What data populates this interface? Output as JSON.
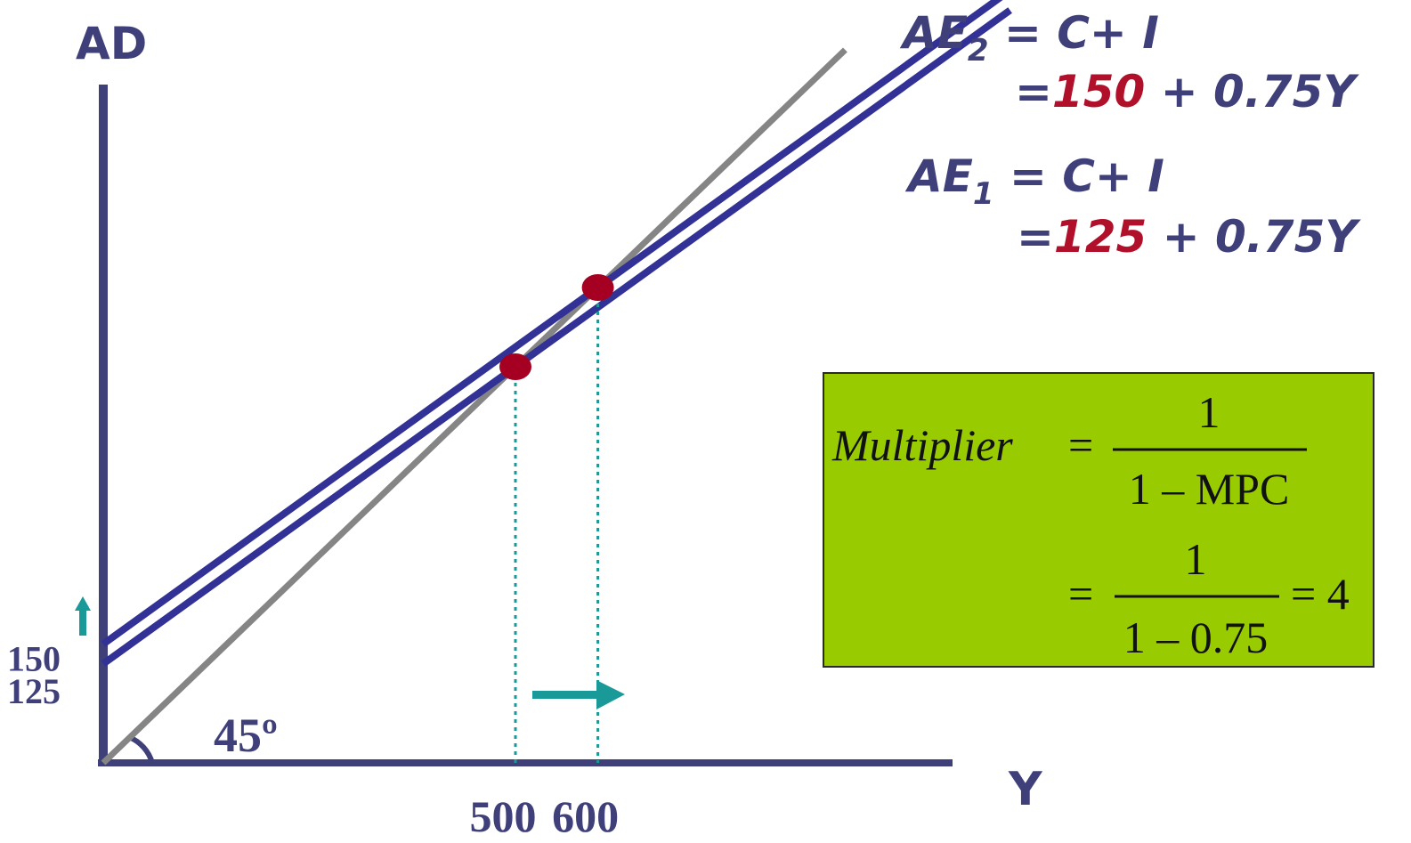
{
  "chart_data": {
    "type": "line",
    "axes": {
      "y_label": "AD",
      "x_label": "Y",
      "xlim": [
        0,
        1100
      ],
      "ylim": [
        0,
        1050
      ],
      "y_ticks": [
        {
          "value": 125,
          "label": "125"
        },
        {
          "value": 150,
          "label": "150"
        }
      ],
      "x_ticks": [
        {
          "value": 500,
          "label": "500"
        },
        {
          "value": 600,
          "label": "600"
        }
      ]
    },
    "angle_label": "45º",
    "series": [
      {
        "name": "45° line",
        "intercept": 0,
        "slope": 1,
        "x_end": 900,
        "color": "#858585"
      },
      {
        "name": "AE1",
        "intercept": 125,
        "slope": 0.75,
        "x_end": 1100,
        "color": "#323296"
      },
      {
        "name": "AE2",
        "intercept": 150,
        "slope": 0.75,
        "x_end": 1100,
        "color": "#323296"
      }
    ],
    "equilibrium_points": [
      {
        "x": 500,
        "y": 500
      },
      {
        "x": 600,
        "y": 600
      }
    ],
    "shift_arrows": [
      "up-y",
      "right-x"
    ],
    "annotations": {
      "ae2_line1": {
        "base": "AE",
        "sub": "2",
        "rest": " = C+ I"
      },
      "ae2_line2": {
        "eq": "=",
        "value": "150",
        "rest": " + 0.75Y"
      },
      "ae1_line1": {
        "base": "AE",
        "sub": "1",
        "rest": " = C+ I"
      },
      "ae1_line2": {
        "eq": "=",
        "value": "125",
        "rest": " + 0.75Y"
      }
    },
    "multiplier_box": {
      "label": "Multiplier",
      "eq": "=",
      "num1": "1",
      "den1": "1 – MPC",
      "num2": "1",
      "den2": "1 – 0.75",
      "result": "= 4"
    },
    "colors": {
      "axis": "#3f3f7a",
      "ae_lines": "#323296",
      "line_45": "#858585",
      "point": "#a50021",
      "guide": "#1a9999",
      "arrow": "#1a9999",
      "box_fill": "#99cc00",
      "value_red": "#b0102a"
    }
  }
}
